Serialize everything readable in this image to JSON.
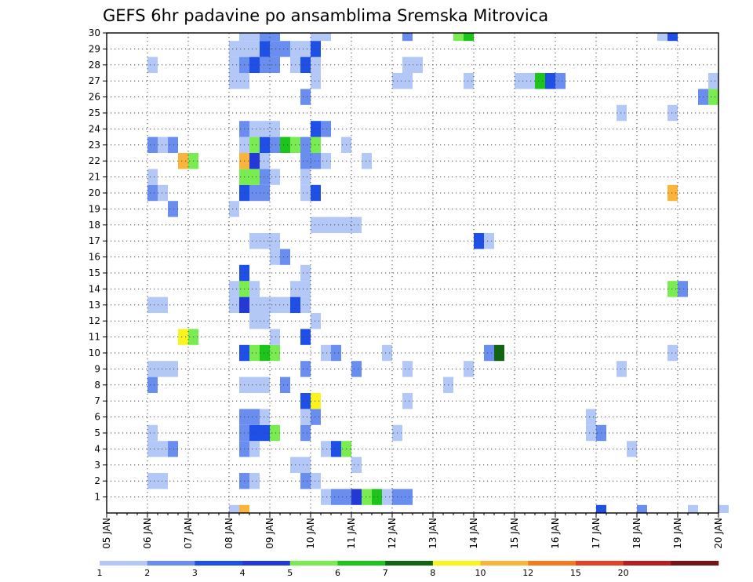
{
  "chart_data": {
    "type": "heatmap",
    "title": "GEFS 6hr padavine po ansamblima Sremska Mitrovica",
    "xlabel": "",
    "ylabel": "",
    "x_ticks": [
      "05 JAN",
      "06 JAN",
      "07 JAN",
      "08 JAN",
      "09 JAN",
      "10 JAN",
      "11 JAN",
      "12 JAN",
      "13 JAN",
      "14 JAN",
      "15 JAN",
      "16 JAN",
      "17 JAN",
      "18 JAN",
      "19 JAN",
      "20 JAN"
    ],
    "x_start": "2025-01-05",
    "x_step_hours": 6,
    "y_ticks": [
      "1",
      "2",
      "3",
      "4",
      "5",
      "6",
      "7",
      "8",
      "9",
      "10",
      "11",
      "12",
      "13",
      "14",
      "15",
      "16",
      "17",
      "18",
      "19",
      "20",
      "21",
      "22",
      "23",
      "24",
      "25",
      "26",
      "27",
      "28",
      "29",
      "30"
    ],
    "grid": true,
    "colorbar": {
      "labels": [
        "1",
        "2",
        "3",
        "4",
        "5",
        "6",
        "7",
        "8",
        "10",
        "12",
        "15",
        "20"
      ],
      "colors": [
        "#b4c8f8",
        "#6a8ef0",
        "#1e4fe6",
        "#2238d8",
        "#78ec50",
        "#1cc41c",
        "#116411",
        "#faf41e",
        "#fbb43a",
        "#f47c20",
        "#e04424",
        "#b41e1e",
        "#781414"
      ]
    },
    "members": [
      {
        "member": 0,
        "cells": [
          [
            12,
            1
          ],
          [
            13,
            9
          ],
          [
            48,
            3
          ],
          [
            52,
            2
          ],
          [
            57,
            1
          ],
          [
            60,
            1
          ]
        ]
      },
      {
        "member": 1,
        "cells": [
          [
            21,
            1
          ],
          [
            22,
            2
          ],
          [
            23,
            2
          ],
          [
            24,
            4
          ],
          [
            25,
            5
          ],
          [
            26,
            6
          ],
          [
            27,
            1
          ],
          [
            28,
            2
          ],
          [
            29,
            2
          ]
        ]
      },
      {
        "member": 2,
        "cells": [
          [
            4,
            1
          ],
          [
            5,
            1
          ],
          [
            13,
            2
          ],
          [
            14,
            1
          ],
          [
            19,
            2
          ],
          [
            20,
            1
          ]
        ]
      },
      {
        "member": 3,
        "cells": [
          [
            18,
            1
          ],
          [
            19,
            1
          ],
          [
            24,
            1
          ]
        ]
      },
      {
        "member": 4,
        "cells": [
          [
            4,
            1
          ],
          [
            5,
            1
          ],
          [
            6,
            2
          ],
          [
            13,
            2
          ],
          [
            14,
            1
          ],
          [
            21,
            1
          ],
          [
            22,
            3
          ],
          [
            23,
            5
          ],
          [
            51,
            1
          ]
        ]
      },
      {
        "member": 5,
        "cells": [
          [
            4,
            1
          ],
          [
            13,
            2
          ],
          [
            14,
            3
          ],
          [
            15,
            3
          ],
          [
            16,
            5
          ],
          [
            19,
            2
          ],
          [
            28,
            1
          ],
          [
            47,
            1
          ],
          [
            48,
            2
          ]
        ]
      },
      {
        "member": 6,
        "cells": [
          [
            13,
            2
          ],
          [
            14,
            2
          ],
          [
            15,
            1
          ],
          [
            19,
            1
          ],
          [
            20,
            2
          ],
          [
            47,
            1
          ]
        ]
      },
      {
        "member": 7,
        "cells": [
          [
            19,
            3
          ],
          [
            20,
            8
          ],
          [
            29,
            1
          ]
        ]
      },
      {
        "member": 8,
        "cells": [
          [
            4,
            2
          ],
          [
            13,
            1
          ],
          [
            14,
            1
          ],
          [
            15,
            1
          ],
          [
            17,
            2
          ],
          [
            33,
            1
          ]
        ]
      },
      {
        "member": 9,
        "cells": [
          [
            4,
            1
          ],
          [
            5,
            1
          ],
          [
            6,
            1
          ],
          [
            19,
            2
          ],
          [
            24,
            2
          ],
          [
            29,
            1
          ],
          [
            35,
            1
          ],
          [
            50,
            1
          ]
        ]
      },
      {
        "member": 10,
        "cells": [
          [
            13,
            3
          ],
          [
            14,
            5
          ],
          [
            15,
            6
          ],
          [
            16,
            5
          ],
          [
            21,
            1
          ],
          [
            22,
            2
          ],
          [
            27,
            1
          ],
          [
            37,
            2
          ],
          [
            38,
            7
          ],
          [
            55,
            1
          ]
        ]
      },
      {
        "member": 11,
        "cells": [
          [
            7,
            8
          ],
          [
            8,
            5
          ],
          [
            16,
            1
          ],
          [
            19,
            3
          ]
        ]
      },
      {
        "member": 12,
        "cells": [
          [
            14,
            1
          ],
          [
            15,
            1
          ],
          [
            20,
            1
          ]
        ]
      },
      {
        "member": 13,
        "cells": [
          [
            4,
            1
          ],
          [
            5,
            1
          ],
          [
            12,
            1
          ],
          [
            13,
            4
          ],
          [
            14,
            1
          ],
          [
            15,
            1
          ],
          [
            16,
            1
          ],
          [
            17,
            1
          ],
          [
            18,
            3
          ],
          [
            19,
            1
          ]
        ]
      },
      {
        "member": 14,
        "cells": [
          [
            12,
            1
          ],
          [
            13,
            5
          ],
          [
            14,
            1
          ],
          [
            18,
            1
          ],
          [
            19,
            1
          ],
          [
            55,
            5
          ],
          [
            56,
            2
          ]
        ]
      },
      {
        "member": 15,
        "cells": [
          [
            13,
            3
          ],
          [
            19,
            1
          ]
        ]
      },
      {
        "member": 16,
        "cells": [
          [
            16,
            1
          ],
          [
            17,
            2
          ]
        ]
      },
      {
        "member": 17,
        "cells": [
          [
            14,
            1
          ],
          [
            15,
            1
          ],
          [
            16,
            1
          ],
          [
            36,
            3
          ],
          [
            37,
            1
          ]
        ]
      },
      {
        "member": 18,
        "cells": [
          [
            20,
            1
          ],
          [
            21,
            1
          ],
          [
            22,
            1
          ],
          [
            23,
            1
          ],
          [
            24,
            1
          ]
        ]
      },
      {
        "member": 19,
        "cells": [
          [
            6,
            2
          ],
          [
            12,
            1
          ]
        ]
      },
      {
        "member": 20,
        "cells": [
          [
            4,
            2
          ],
          [
            5,
            1
          ],
          [
            13,
            3
          ],
          [
            14,
            2
          ],
          [
            15,
            2
          ],
          [
            19,
            1
          ],
          [
            20,
            3
          ],
          [
            55,
            9
          ]
        ]
      },
      {
        "member": 21,
        "cells": [
          [
            4,
            1
          ],
          [
            13,
            5
          ],
          [
            14,
            5
          ],
          [
            15,
            2
          ],
          [
            16,
            1
          ],
          [
            19,
            1
          ]
        ]
      },
      {
        "member": 22,
        "cells": [
          [
            7,
            9
          ],
          [
            8,
            5
          ],
          [
            13,
            9
          ],
          [
            14,
            4
          ],
          [
            15,
            1
          ],
          [
            19,
            2
          ],
          [
            20,
            2
          ],
          [
            21,
            1
          ],
          [
            25,
            1
          ]
        ]
      },
      {
        "member": 23,
        "cells": [
          [
            4,
            2
          ],
          [
            5,
            1
          ],
          [
            6,
            2
          ],
          [
            13,
            1
          ],
          [
            14,
            5
          ],
          [
            15,
            3
          ],
          [
            16,
            2
          ],
          [
            17,
            6
          ],
          [
            18,
            5
          ],
          [
            19,
            2
          ],
          [
            20,
            5
          ],
          [
            23,
            1
          ]
        ]
      },
      {
        "member": 24,
        "cells": [
          [
            13,
            2
          ],
          [
            14,
            1
          ],
          [
            15,
            1
          ],
          [
            16,
            1
          ],
          [
            20,
            3
          ],
          [
            21,
            2
          ]
        ]
      },
      {
        "member": 25,
        "cells": [
          [
            50,
            1
          ],
          [
            55,
            1
          ]
        ]
      },
      {
        "member": 26,
        "cells": [
          [
            19,
            2
          ],
          [
            58,
            2
          ],
          [
            59,
            5
          ]
        ]
      },
      {
        "member": 27,
        "cells": [
          [
            12,
            1
          ],
          [
            13,
            1
          ],
          [
            20,
            1
          ],
          [
            28,
            1
          ],
          [
            29,
            1
          ],
          [
            35,
            1
          ],
          [
            40,
            1
          ],
          [
            41,
            1
          ],
          [
            42,
            6
          ],
          [
            43,
            3
          ],
          [
            44,
            2
          ],
          [
            59,
            1
          ]
        ]
      },
      {
        "member": 28,
        "cells": [
          [
            4,
            1
          ],
          [
            12,
            1
          ],
          [
            13,
            2
          ],
          [
            14,
            3
          ],
          [
            15,
            2
          ],
          [
            16,
            2
          ],
          [
            18,
            1
          ],
          [
            19,
            3
          ],
          [
            20,
            1
          ],
          [
            29,
            1
          ],
          [
            30,
            1
          ]
        ]
      },
      {
        "member": 29,
        "cells": [
          [
            12,
            1
          ],
          [
            13,
            1
          ],
          [
            14,
            1
          ],
          [
            15,
            3
          ],
          [
            16,
            2
          ],
          [
            17,
            2
          ],
          [
            18,
            1
          ],
          [
            19,
            1
          ],
          [
            20,
            3
          ],
          [
            20,
            3
          ]
        ]
      },
      {
        "member": 30,
        "cells": [
          [
            13,
            1
          ],
          [
            14,
            1
          ],
          [
            15,
            2
          ],
          [
            16,
            2
          ],
          [
            20,
            1
          ],
          [
            21,
            1
          ],
          [
            29,
            2
          ],
          [
            34,
            5
          ],
          [
            35,
            6
          ],
          [
            54,
            1
          ],
          [
            55,
            3
          ]
        ]
      }
    ]
  }
}
